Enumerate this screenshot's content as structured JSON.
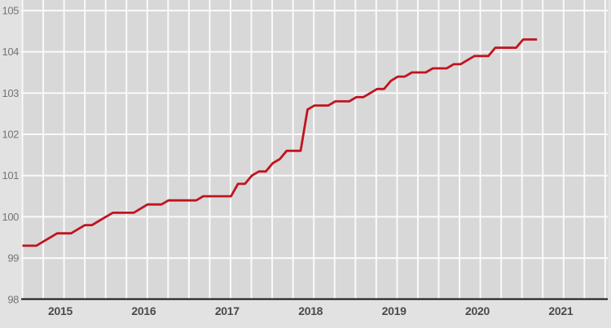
{
  "chart_data": {
    "type": "line",
    "x_start": "2015-01",
    "x_end": "2021-03",
    "frequency": "monthly",
    "series": [
      {
        "name": "index-line",
        "color": "#c0141f",
        "values": [
          99.3,
          99.3,
          99.3,
          99.4,
          99.5,
          99.6,
          99.6,
          99.6,
          99.7,
          99.8,
          99.8,
          99.9,
          100.0,
          100.1,
          100.1,
          100.1,
          100.1,
          100.2,
          100.3,
          100.3,
          100.3,
          100.4,
          100.4,
          100.4,
          100.4,
          100.4,
          100.5,
          100.5,
          100.5,
          100.5,
          100.5,
          100.8,
          100.8,
          101.0,
          101.1,
          101.1,
          101.3,
          101.4,
          101.6,
          101.6,
          101.6,
          102.6,
          102.7,
          102.7,
          102.7,
          102.8,
          102.8,
          102.8,
          102.9,
          102.9,
          103.0,
          103.1,
          103.1,
          103.3,
          103.4,
          103.4,
          103.5,
          103.5,
          103.5,
          103.6,
          103.6,
          103.6,
          103.7,
          103.7,
          103.8,
          103.9,
          103.9,
          103.9,
          104.1,
          104.1,
          104.1,
          104.1,
          104.3,
          104.3,
          104.3
        ]
      }
    ],
    "x_tick_labels": [
      "2015",
      "2016",
      "2017",
      "2018",
      "2019",
      "2020",
      "2021"
    ],
    "y_ticks": [
      98,
      99,
      100,
      101,
      102,
      103,
      104,
      105
    ],
    "ylim": [
      98,
      105
    ],
    "x_axis_span_months": 84,
    "grid": {
      "vertical": "quarterly",
      "horizontal": "every-1-unit"
    },
    "legend": "none",
    "colors": {
      "outer_background": "#e2e2e2",
      "plot_background": "#d8d8d8",
      "gridline": "#fafafa",
      "axis_line": "#141414",
      "y_label": "#757575",
      "x_label": "#4a4a4a",
      "line": "#c0141f"
    }
  }
}
